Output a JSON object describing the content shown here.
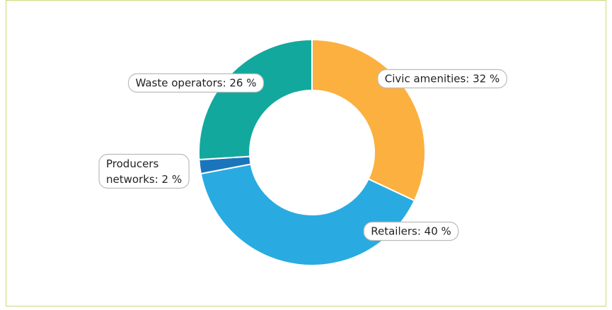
{
  "chart_data": {
    "type": "donut",
    "values": [
      32,
      40,
      2,
      26
    ],
    "value_labels": [
      "Civic amenities: 32 %",
      "Retailers: 40 %",
      "Producers networks: 2 %",
      "Waste operators: 26 %"
    ],
    "colors": [
      "#fbb040",
      "#29abe2",
      "#1b75bc",
      "#12a89d"
    ]
  }
}
